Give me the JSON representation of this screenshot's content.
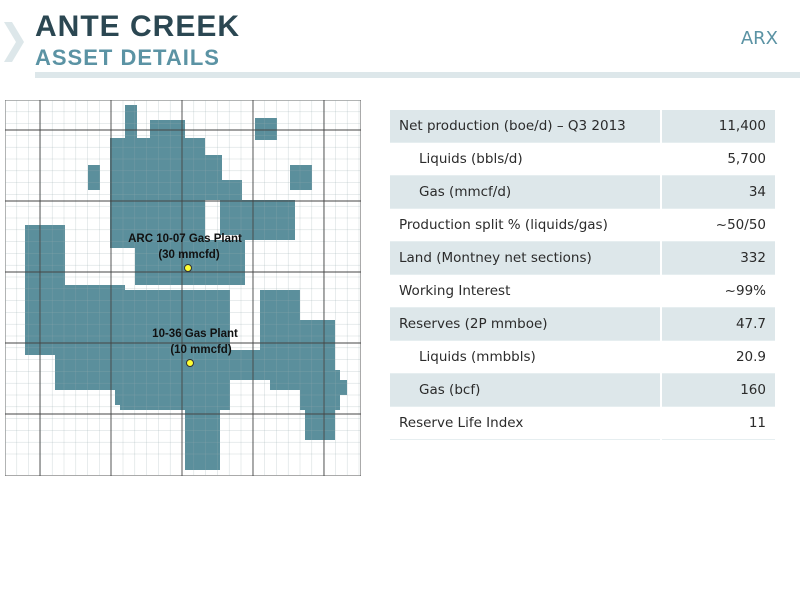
{
  "header": {
    "title": "ANTE CREEK",
    "subtitle": "ASSET DETAILS",
    "logo": "ARX"
  },
  "map": {
    "labels": [
      {
        "name": "ARC 10-07 Gas Plant",
        "capacity": "(30 mmcfd)"
      },
      {
        "name": "10-36 Gas Plant",
        "capacity": "(10 mmcfd)"
      }
    ]
  },
  "table": {
    "rows": [
      [
        "Net production (boe/d) – Q3 2013",
        "11,400"
      ],
      [
        "Liquids (bbls/d)",
        "5,700"
      ],
      [
        "Gas (mmcf/d)",
        "34"
      ],
      [
        "Production split % (liquids/gas)",
        "~50/50"
      ],
      [
        "Land (Montney net sections)",
        "332"
      ],
      [
        "Working Interest",
        "~99%"
      ],
      [
        "Reserves (2P mmboe)",
        "47.7"
      ],
      [
        "Liquids (mmbbls)",
        "20.9"
      ],
      [
        "Gas (bcf)",
        "160"
      ],
      [
        "Reserve Life Index",
        "11"
      ]
    ]
  }
}
